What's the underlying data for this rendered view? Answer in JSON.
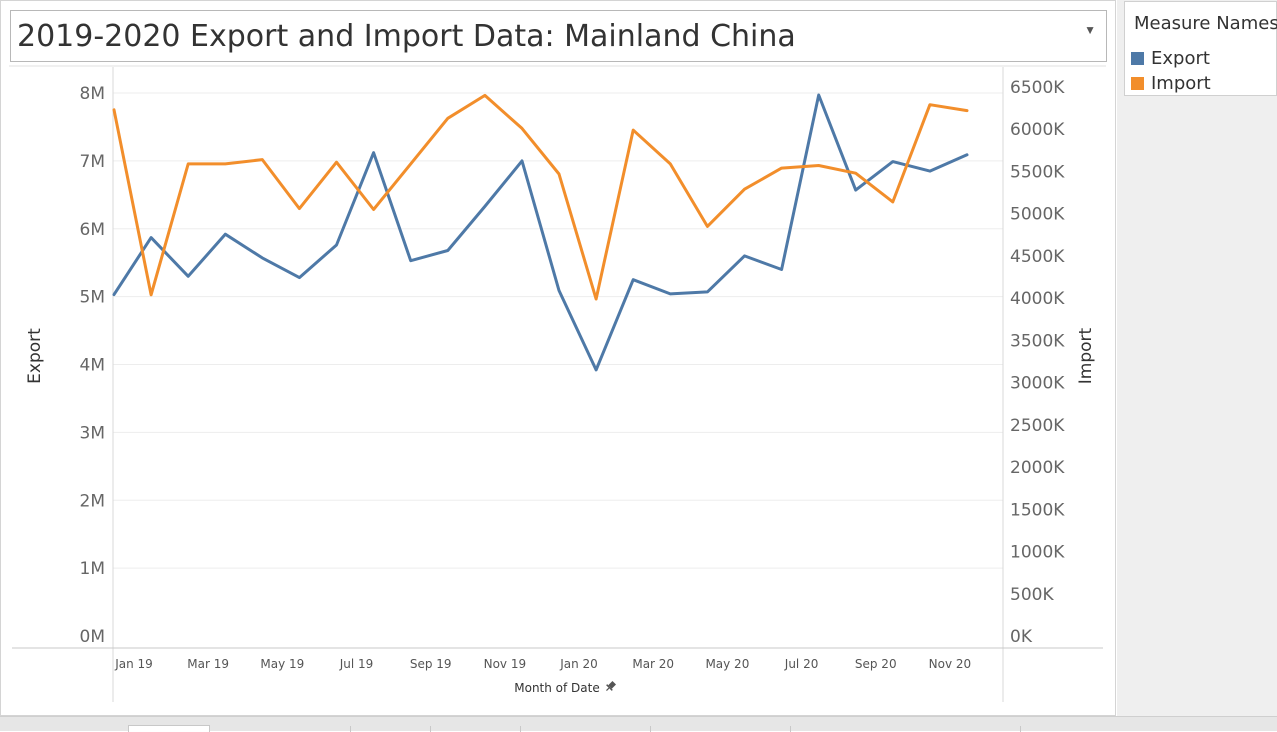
{
  "title": "2019-2020 Export and Import Data: Mainland China",
  "title_dropdown_icon": "caret-down-icon",
  "legend": {
    "title": "Measure Names",
    "items": [
      {
        "label": "Export",
        "color": "#4e79a7"
      },
      {
        "label": "Import",
        "color": "#f28e2b"
      }
    ]
  },
  "chart_data": {
    "type": "line",
    "x": [
      "2019-01",
      "2019-02",
      "2019-03",
      "2019-04",
      "2019-05",
      "2019-06",
      "2019-07",
      "2019-08",
      "2019-09",
      "2019-10",
      "2019-11",
      "2019-12",
      "2020-01",
      "2020-02",
      "2020-03",
      "2020-04",
      "2020-05",
      "2020-06",
      "2020-07",
      "2020-08",
      "2020-09",
      "2020-10",
      "2020-11",
      "2020-12"
    ],
    "x_tick_labels": [
      "Jan 19",
      "Mar 19",
      "May 19",
      "Jul 19",
      "Sep 19",
      "Nov 19",
      "Jan 20",
      "Mar 20",
      "May 20",
      "Jul 20",
      "Sep 20",
      "Nov 20"
    ],
    "xlabel": "Month of Date",
    "xlabel_icon": "pin-icon",
    "series": [
      {
        "name": "Export",
        "axis": "left",
        "color": "#4e79a7",
        "values": [
          5030000,
          5870000,
          5300000,
          5920000,
          5570000,
          5280000,
          5760000,
          7120000,
          5530000,
          5680000,
          6330000,
          7000000,
          5090000,
          3920000,
          5250000,
          5040000,
          5070000,
          5600000,
          5400000,
          7970000,
          6570000,
          6990000,
          6850000,
          7090000
        ]
      },
      {
        "name": "Import",
        "axis": "right",
        "color": "#f28e2b",
        "values": [
          6230000,
          4040000,
          5590000,
          5590000,
          5640000,
          5060000,
          5610000,
          5050000,
          5590000,
          6130000,
          6400000,
          6010000,
          5470000,
          3990000,
          5990000,
          5590000,
          4850000,
          5290000,
          5540000,
          5570000,
          5480000,
          5140000,
          6290000,
          6220000
        ]
      }
    ],
    "y_left": {
      "label": "Export",
      "ylim": [
        0,
        8000000
      ],
      "ticks": [
        0,
        1000000,
        2000000,
        3000000,
        4000000,
        5000000,
        6000000,
        7000000,
        8000000
      ],
      "tick_labels": [
        "0M",
        "1M",
        "2M",
        "3M",
        "4M",
        "5M",
        "6M",
        "7M",
        "8M"
      ]
    },
    "y_right": {
      "label": "Import",
      "ylim": [
        0,
        6500000
      ],
      "ticks": [
        0,
        500000,
        1000000,
        1500000,
        2000000,
        2500000,
        3000000,
        3500000,
        4000000,
        4500000,
        5000000,
        5500000,
        6000000,
        6500000
      ],
      "tick_labels": [
        "0K",
        "500K",
        "1000K",
        "1500K",
        "2000K",
        "2500K",
        "3000K",
        "3500K",
        "4000K",
        "4500K",
        "5000K",
        "5500K",
        "6000K",
        "6500K"
      ]
    },
    "grid": true,
    "legend_position": "top-right"
  }
}
